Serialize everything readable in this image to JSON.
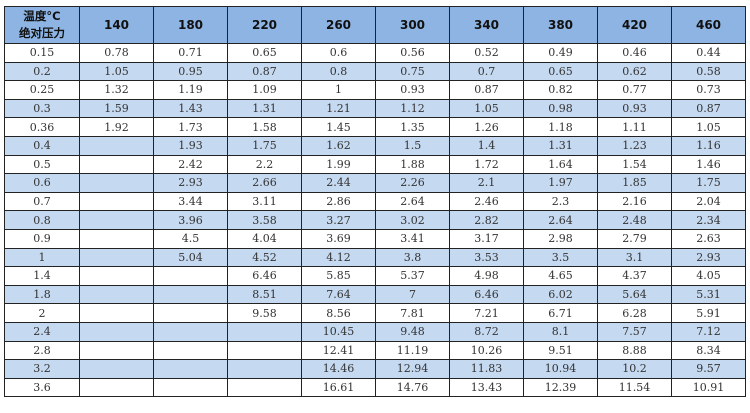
{
  "table": {
    "corner_line1": "温度°C",
    "corner_line2": "绝对压力",
    "columns": [
      "140",
      "180",
      "220",
      "260",
      "300",
      "340",
      "380",
      "420",
      "460"
    ],
    "rows": [
      {
        "pressure": "0.15",
        "values": [
          "0.78",
          "0.71",
          "0.65",
          "0.6",
          "0.56",
          "0.52",
          "0.49",
          "0.46",
          "0.44"
        ]
      },
      {
        "pressure": "0.2",
        "values": [
          "1.05",
          "0.95",
          "0.87",
          "0.8",
          "0.75",
          "0.7",
          "0.65",
          "0.62",
          "0.58"
        ]
      },
      {
        "pressure": "0.25",
        "values": [
          "1.32",
          "1.19",
          "1.09",
          "1",
          "0.93",
          "0.87",
          "0.82",
          "0.77",
          "0.73"
        ]
      },
      {
        "pressure": "0.3",
        "values": [
          "1.59",
          "1.43",
          "1.31",
          "1.21",
          "1.12",
          "1.05",
          "0.98",
          "0.93",
          "0.87"
        ]
      },
      {
        "pressure": "0.36",
        "values": [
          "1.92",
          "1.73",
          "1.58",
          "1.45",
          "1.35",
          "1.26",
          "1.18",
          "1.11",
          "1.05"
        ]
      },
      {
        "pressure": "0.4",
        "values": [
          "",
          "1.93",
          "1.75",
          "1.62",
          "1.5",
          "1.4",
          "1.31",
          "1.23",
          "1.16"
        ]
      },
      {
        "pressure": "0.5",
        "values": [
          "",
          "2.42",
          "2.2",
          "1.99",
          "1.88",
          "1.72",
          "1.64",
          "1.54",
          "1.46"
        ]
      },
      {
        "pressure": "0.6",
        "values": [
          "",
          "2.93",
          "2.66",
          "2.44",
          "2.26",
          "2.1",
          "1.97",
          "1.85",
          "1.75"
        ]
      },
      {
        "pressure": "0.7",
        "values": [
          "",
          "3.44",
          "3.11",
          "2.86",
          "2.64",
          "2.46",
          "2.3",
          "2.16",
          "2.04"
        ]
      },
      {
        "pressure": "0.8",
        "values": [
          "",
          "3.96",
          "3.58",
          "3.27",
          "3.02",
          "2.82",
          "2.64",
          "2.48",
          "2.34"
        ]
      },
      {
        "pressure": "0.9",
        "values": [
          "",
          "4.5",
          "4.04",
          "3.69",
          "3.41",
          "3.17",
          "2.98",
          "2.79",
          "2.63"
        ]
      },
      {
        "pressure": "1",
        "values": [
          "",
          "5.04",
          "4.52",
          "4.12",
          "3.8",
          "3.53",
          "3.5",
          "3.1",
          "2.93"
        ]
      },
      {
        "pressure": "1.4",
        "values": [
          "",
          "",
          "6.46",
          "5.85",
          "5.37",
          "4.98",
          "4.65",
          "4.37",
          "4.05"
        ]
      },
      {
        "pressure": "1.8",
        "values": [
          "",
          "",
          "8.51",
          "7.64",
          "7",
          "6.46",
          "6.02",
          "5.64",
          "5.31"
        ]
      },
      {
        "pressure": "2",
        "values": [
          "",
          "",
          "9.58",
          "8.56",
          "7.81",
          "7.21",
          "6.71",
          "6.28",
          "5.91"
        ]
      },
      {
        "pressure": "2.4",
        "values": [
          "",
          "",
          "",
          "10.45",
          "9.48",
          "8.72",
          "8.1",
          "7.57",
          "7.12"
        ]
      },
      {
        "pressure": "2.8",
        "values": [
          "",
          "",
          "",
          "12.41",
          "11.19",
          "10.26",
          "9.51",
          "8.88",
          "8.34"
        ]
      },
      {
        "pressure": "3.2",
        "values": [
          "",
          "",
          "",
          "14.46",
          "12.94",
          "11.83",
          "10.94",
          "10.2",
          "9.57"
        ]
      },
      {
        "pressure": "3.6",
        "values": [
          "",
          "",
          "",
          "16.61",
          "14.76",
          "13.43",
          "12.39",
          "11.54",
          "10.91"
        ]
      }
    ]
  },
  "colors": {
    "header_bg": "#8db4e2",
    "stripe_bg": "#c5d9f1",
    "border": "#222222"
  }
}
